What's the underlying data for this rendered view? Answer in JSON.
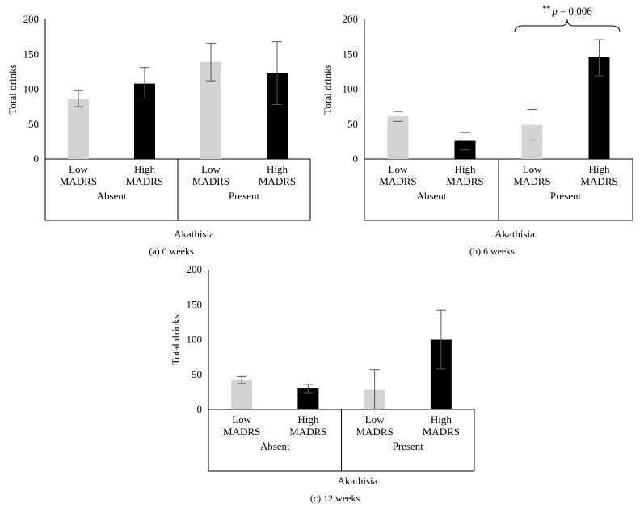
{
  "chart_data": [
    {
      "type": "bar",
      "panel": "(a)",
      "caption": "(a)  0 weeks",
      "ylabel": "Total drinks",
      "xlabel": "Akathisia",
      "ylim": [
        0,
        200
      ],
      "yticks": [
        0,
        50,
        100,
        150,
        200
      ],
      "groups": [
        "Absent",
        "Present"
      ],
      "categories": [
        {
          "line1": "Low",
          "line2": "MADRS",
          "group": "Absent"
        },
        {
          "line1": "High",
          "line2": "MADRS",
          "group": "Absent"
        },
        {
          "line1": "Low",
          "line2": "MADRS",
          "group": "Present"
        },
        {
          "line1": "High",
          "line2": "MADRS",
          "group": "Present"
        }
      ],
      "values": [
        86,
        108,
        139,
        123
      ],
      "err_low": [
        75,
        86,
        112,
        78
      ],
      "err_high": [
        98,
        131,
        166,
        168
      ],
      "colors": [
        "#d3d3d3",
        "#000000",
        "#d3d3d3",
        "#000000"
      ]
    },
    {
      "type": "bar",
      "panel": "(b)",
      "caption": "(b)  6 weeks",
      "ylabel": "Total drinks",
      "xlabel": "Akathisia",
      "ylim": [
        0,
        200
      ],
      "yticks": [
        0,
        50,
        100,
        150,
        200
      ],
      "groups": [
        "Absent",
        "Present"
      ],
      "categories": [
        {
          "line1": "Low",
          "line2": "MADRS",
          "group": "Absent"
        },
        {
          "line1": "High",
          "line2": "MADRS",
          "group": "Absent"
        },
        {
          "line1": "Low",
          "line2": "MADRS",
          "group": "Present"
        },
        {
          "line1": "High",
          "line2": "MADRS",
          "group": "Present"
        }
      ],
      "values": [
        61,
        26,
        49,
        146
      ],
      "err_low": [
        54,
        13,
        27,
        119
      ],
      "err_high": [
        68,
        38,
        71,
        171
      ],
      "colors": [
        "#d3d3d3",
        "#000000",
        "#d3d3d3",
        "#000000"
      ],
      "annotation": {
        "stars": "**",
        "p": "p",
        "text": " = 0.006",
        "from": 2,
        "to": 3
      }
    },
    {
      "type": "bar",
      "panel": "(c)",
      "caption": "(c)  12 weeks",
      "ylabel": "Total drinks",
      "xlabel": "Akathisia",
      "ylim": [
        0,
        200
      ],
      "yticks": [
        0,
        50,
        100,
        150,
        200
      ],
      "groups": [
        "Absent",
        "Present"
      ],
      "categories": [
        {
          "line1": "Low",
          "line2": "MADRS",
          "group": "Absent"
        },
        {
          "line1": "High",
          "line2": "MADRS",
          "group": "Absent"
        },
        {
          "line1": "Low",
          "line2": "MADRS",
          "group": "Present"
        },
        {
          "line1": "High",
          "line2": "MADRS",
          "group": "Present"
        }
      ],
      "values": [
        42,
        30,
        28,
        100
      ],
      "err_low": [
        37,
        23,
        0,
        58
      ],
      "err_high": [
        47,
        36,
        57,
        142
      ],
      "colors": [
        "#d3d3d3",
        "#000000",
        "#d3d3d3",
        "#000000"
      ]
    }
  ]
}
